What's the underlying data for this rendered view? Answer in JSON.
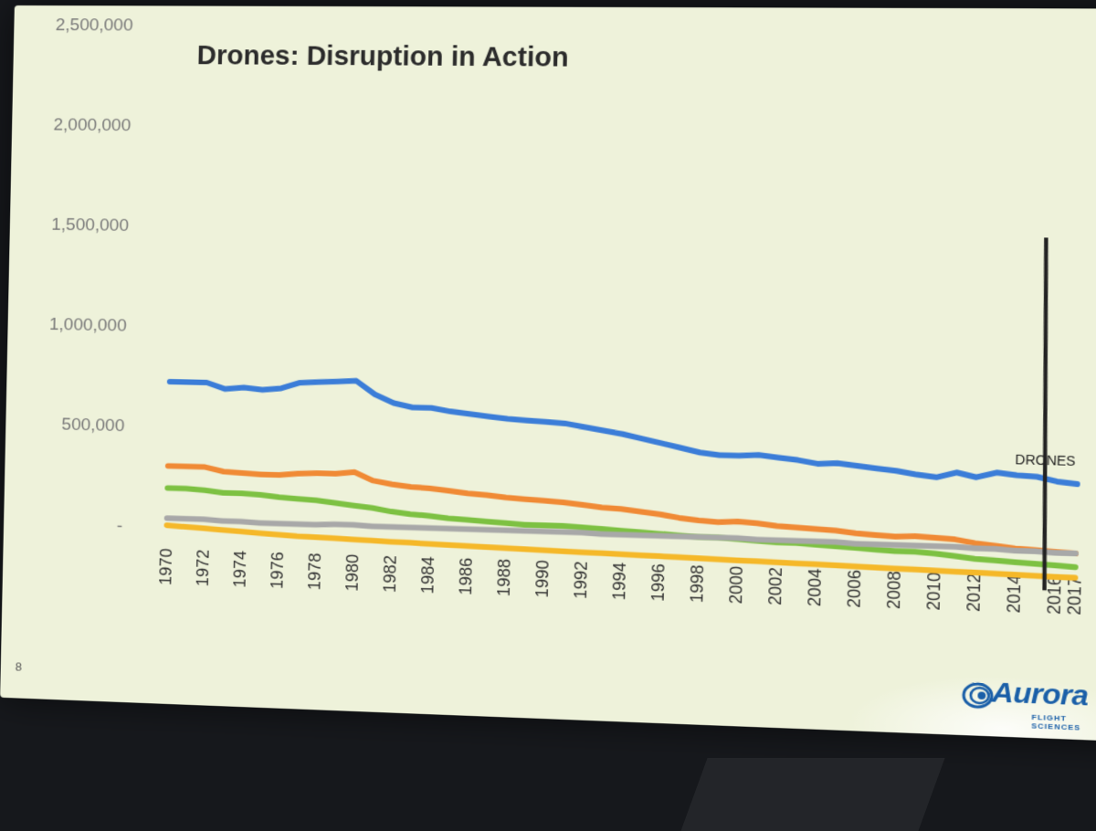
{
  "slide": {
    "title": "Drones: Disruption in Action",
    "page_number": "8",
    "logo": {
      "name": "Aurora",
      "tagline": "FLIGHT SCIENCES",
      "colors": {
        "blue": "#1a5fa8"
      }
    }
  },
  "chart_data": {
    "type": "line",
    "title": "Drones: Disruption in Action",
    "xlabel": "",
    "ylabel": "",
    "ylim": [
      0,
      2500000
    ],
    "y_ticks": [
      {
        "value": 0,
        "label": "-"
      },
      {
        "value": 500000,
        "label": "500,000"
      },
      {
        "value": 1000000,
        "label": "1,000,000"
      },
      {
        "value": 1500000,
        "label": "1,500,000"
      },
      {
        "value": 2000000,
        "label": "2,000,000"
      },
      {
        "value": 2500000,
        "label": "2,500,000"
      }
    ],
    "x_start": 1970,
    "x_end": 2017,
    "x_tick_labels": [
      "1970",
      "1972",
      "1974",
      "1976",
      "1978",
      "1980",
      "1982",
      "1984",
      "1986",
      "1988",
      "1990",
      "1992",
      "1994",
      "1996",
      "1998",
      "2000",
      "2002",
      "2004",
      "2006",
      "2008",
      "2010",
      "2012",
      "2014",
      "2016",
      "2017"
    ],
    "series": [
      {
        "name": "blue series",
        "color": "#3b7dd8",
        "values": [
          720000,
          720000,
          720000,
          690000,
          700000,
          690000,
          700000,
          730000,
          735000,
          740000,
          745000,
          680000,
          640000,
          620000,
          620000,
          605000,
          595000,
          585000,
          575000,
          570000,
          565000,
          560000,
          545000,
          530000,
          515000,
          495000,
          475000,
          455000,
          435000,
          425000,
          425000,
          430000,
          420000,
          410000,
          395000,
          400000,
          390000,
          380000,
          370000,
          355000,
          345000,
          370000,
          350000,
          375000,
          365000,
          360000,
          340000,
          330000
        ]
      },
      {
        "name": "orange series",
        "color": "#f08a35",
        "values": [
          300000,
          300000,
          300000,
          280000,
          275000,
          270000,
          270000,
          280000,
          285000,
          285000,
          295000,
          255000,
          240000,
          230000,
          225000,
          215000,
          205000,
          200000,
          190000,
          185000,
          180000,
          175000,
          165000,
          155000,
          150000,
          140000,
          130000,
          115000,
          105000,
          100000,
          105000,
          100000,
          90000,
          85000,
          80000,
          75000,
          65000,
          60000,
          55000,
          60000,
          55000,
          50000,
          35000,
          25000,
          15000,
          10000,
          5000,
          0
        ]
      },
      {
        "name": "green series",
        "color": "#7dc142",
        "values": [
          190000,
          190000,
          185000,
          175000,
          175000,
          170000,
          160000,
          155000,
          150000,
          140000,
          130000,
          120000,
          105000,
          95000,
          90000,
          80000,
          75000,
          70000,
          65000,
          60000,
          60000,
          60000,
          55000,
          50000,
          45000,
          40000,
          35000,
          30000,
          25000,
          25000,
          20000,
          15000,
          10000,
          10000,
          5000,
          0,
          -5000,
          -10000,
          -15000,
          -15000,
          -20000,
          -30000,
          -40000,
          -45000,
          -50000,
          -55000,
          -60000,
          -65000
        ]
      },
      {
        "name": "gray series",
        "color": "#a8a8a8",
        "values": [
          40000,
          40000,
          40000,
          35000,
          35000,
          30000,
          30000,
          30000,
          30000,
          35000,
          35000,
          30000,
          30000,
          30000,
          30000,
          30000,
          30000,
          30000,
          30000,
          30000,
          30000,
          30000,
          30000,
          25000,
          25000,
          25000,
          25000,
          25000,
          25000,
          25000,
          25000,
          20000,
          20000,
          20000,
          20000,
          20000,
          15000,
          15000,
          15000,
          15000,
          15000,
          15000,
          10000,
          10000,
          5000,
          5000,
          0,
          0
        ]
      },
      {
        "name": "yellow series",
        "color": "#f5b829",
        "values": [
          5000,
          0,
          -5000,
          -10000,
          -15000,
          -20000,
          -25000,
          -30000,
          -32000,
          -35000,
          -38000,
          -40000,
          -43000,
          -45000,
          -48000,
          -50000,
          -53000,
          -55000,
          -57000,
          -60000,
          -62000,
          -64000,
          -66000,
          -68000,
          -70000,
          -72000,
          -74000,
          -76000,
          -78000,
          -80000,
          -82000,
          -84000,
          -86000,
          -88000,
          -90000,
          -92000,
          -94000,
          -96000,
          -98000,
          -100000,
          -102000,
          -104000,
          -106000,
          -108000,
          -110000,
          -112000,
          -114000,
          -116000
        ]
      }
    ],
    "annotations": [
      {
        "text": "DRONES",
        "x": 2015.5,
        "line_y_range": [
          -180000,
          1500000
        ],
        "label_y": 600000
      }
    ]
  }
}
